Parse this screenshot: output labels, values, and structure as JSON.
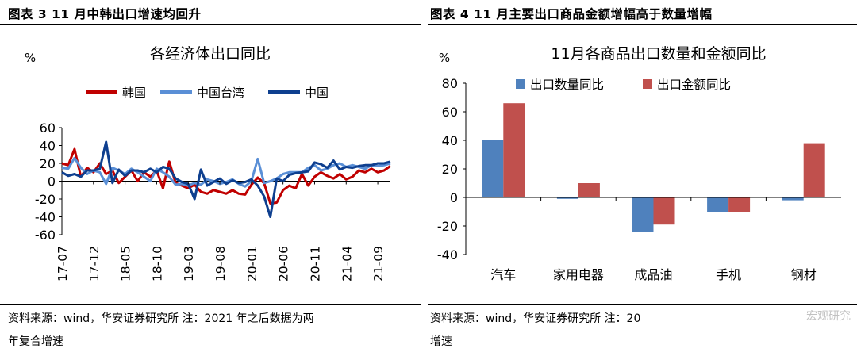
{
  "left_panel": {
    "heading": "图表 3 11 月中韩出口增速均回升",
    "footnote_line1": "资料来源：wind，华安证券研究所  注：2021 年之后数据为两",
    "footnote_line2": "年复合增速"
  },
  "right_panel": {
    "heading": "图表 4 11 月主要出口商品金额增幅高于数量增幅",
    "footnote_line1": "资料来源：wind，华安证券研究所  注：20",
    "footnote_line2": "增速",
    "watermark": "宏观研究"
  },
  "chart_data": [
    {
      "type": "line",
      "title": "各经济体出口同比",
      "ylabel": "%",
      "ylim": [
        -60,
        60
      ],
      "yticks": [
        60,
        40,
        20,
        0,
        -20,
        -40,
        -60
      ],
      "xticks": [
        "17-07",
        "17-12",
        "18-05",
        "18-10",
        "19-03",
        "19-08",
        "20-01",
        "20-06",
        "20-11",
        "21-04",
        "21-09"
      ],
      "x_count": 53,
      "series": [
        {
          "name": "韩国",
          "color": "#C00000",
          "values": [
            20,
            18,
            36,
            5,
            15,
            10,
            20,
            8,
            12,
            -2,
            5,
            12,
            0,
            10,
            5,
            12,
            -8,
            22,
            -2,
            -5,
            -8,
            -4,
            -12,
            -14,
            -10,
            -12,
            -14,
            -10,
            -14,
            -15,
            -4,
            4,
            -2,
            -25,
            -24,
            -10,
            -5,
            -8,
            8,
            -5,
            5,
            10,
            6,
            3,
            8,
            2,
            5,
            12,
            10,
            14,
            10,
            12,
            17
          ]
        },
        {
          "name": "中国台湾",
          "color": "#5A8FD6",
          "values": [
            15,
            14,
            26,
            15,
            8,
            12,
            10,
            -3,
            15,
            12,
            8,
            14,
            10,
            5,
            0,
            14,
            10,
            5,
            -4,
            -3,
            -5,
            -2,
            -4,
            2,
            0,
            -3,
            -1,
            2,
            -3,
            -6,
            0,
            25,
            -2,
            0,
            3,
            8,
            10,
            10,
            10,
            15,
            18,
            12,
            14,
            18,
            20,
            16,
            18,
            16,
            14,
            18,
            17,
            18,
            20
          ]
        },
        {
          "name": "中国",
          "color": "#0E3F8F",
          "values": [
            10,
            6,
            8,
            5,
            12,
            12,
            14,
            44,
            -2,
            13,
            6,
            12,
            12,
            10,
            14,
            10,
            16,
            14,
            3,
            -1,
            -3,
            -20,
            13,
            -5,
            -1,
            3,
            -3,
            1,
            -2,
            -1,
            2,
            -5,
            -17,
            -40,
            3,
            0,
            7,
            9,
            10,
            11,
            21,
            19,
            15,
            23,
            13,
            16,
            15,
            17,
            18,
            18,
            20,
            20,
            22
          ]
        }
      ]
    },
    {
      "type": "bar",
      "title": "11月各商品出口数量和金额同比",
      "ylabel": "%",
      "ylim": [
        -40,
        80
      ],
      "yticks": [
        80,
        60,
        40,
        20,
        0,
        -20,
        -40
      ],
      "categories": [
        "汽车",
        "家用电器",
        "成品油",
        "手机",
        "钢材"
      ],
      "series": [
        {
          "name": "出口数量同比",
          "color": "#4F81BD",
          "values": [
            40,
            -1,
            -24,
            -10,
            -2
          ]
        },
        {
          "name": "出口金额同比",
          "color": "#C0504D",
          "values": [
            66,
            10,
            -19,
            -10,
            38
          ]
        }
      ]
    }
  ]
}
